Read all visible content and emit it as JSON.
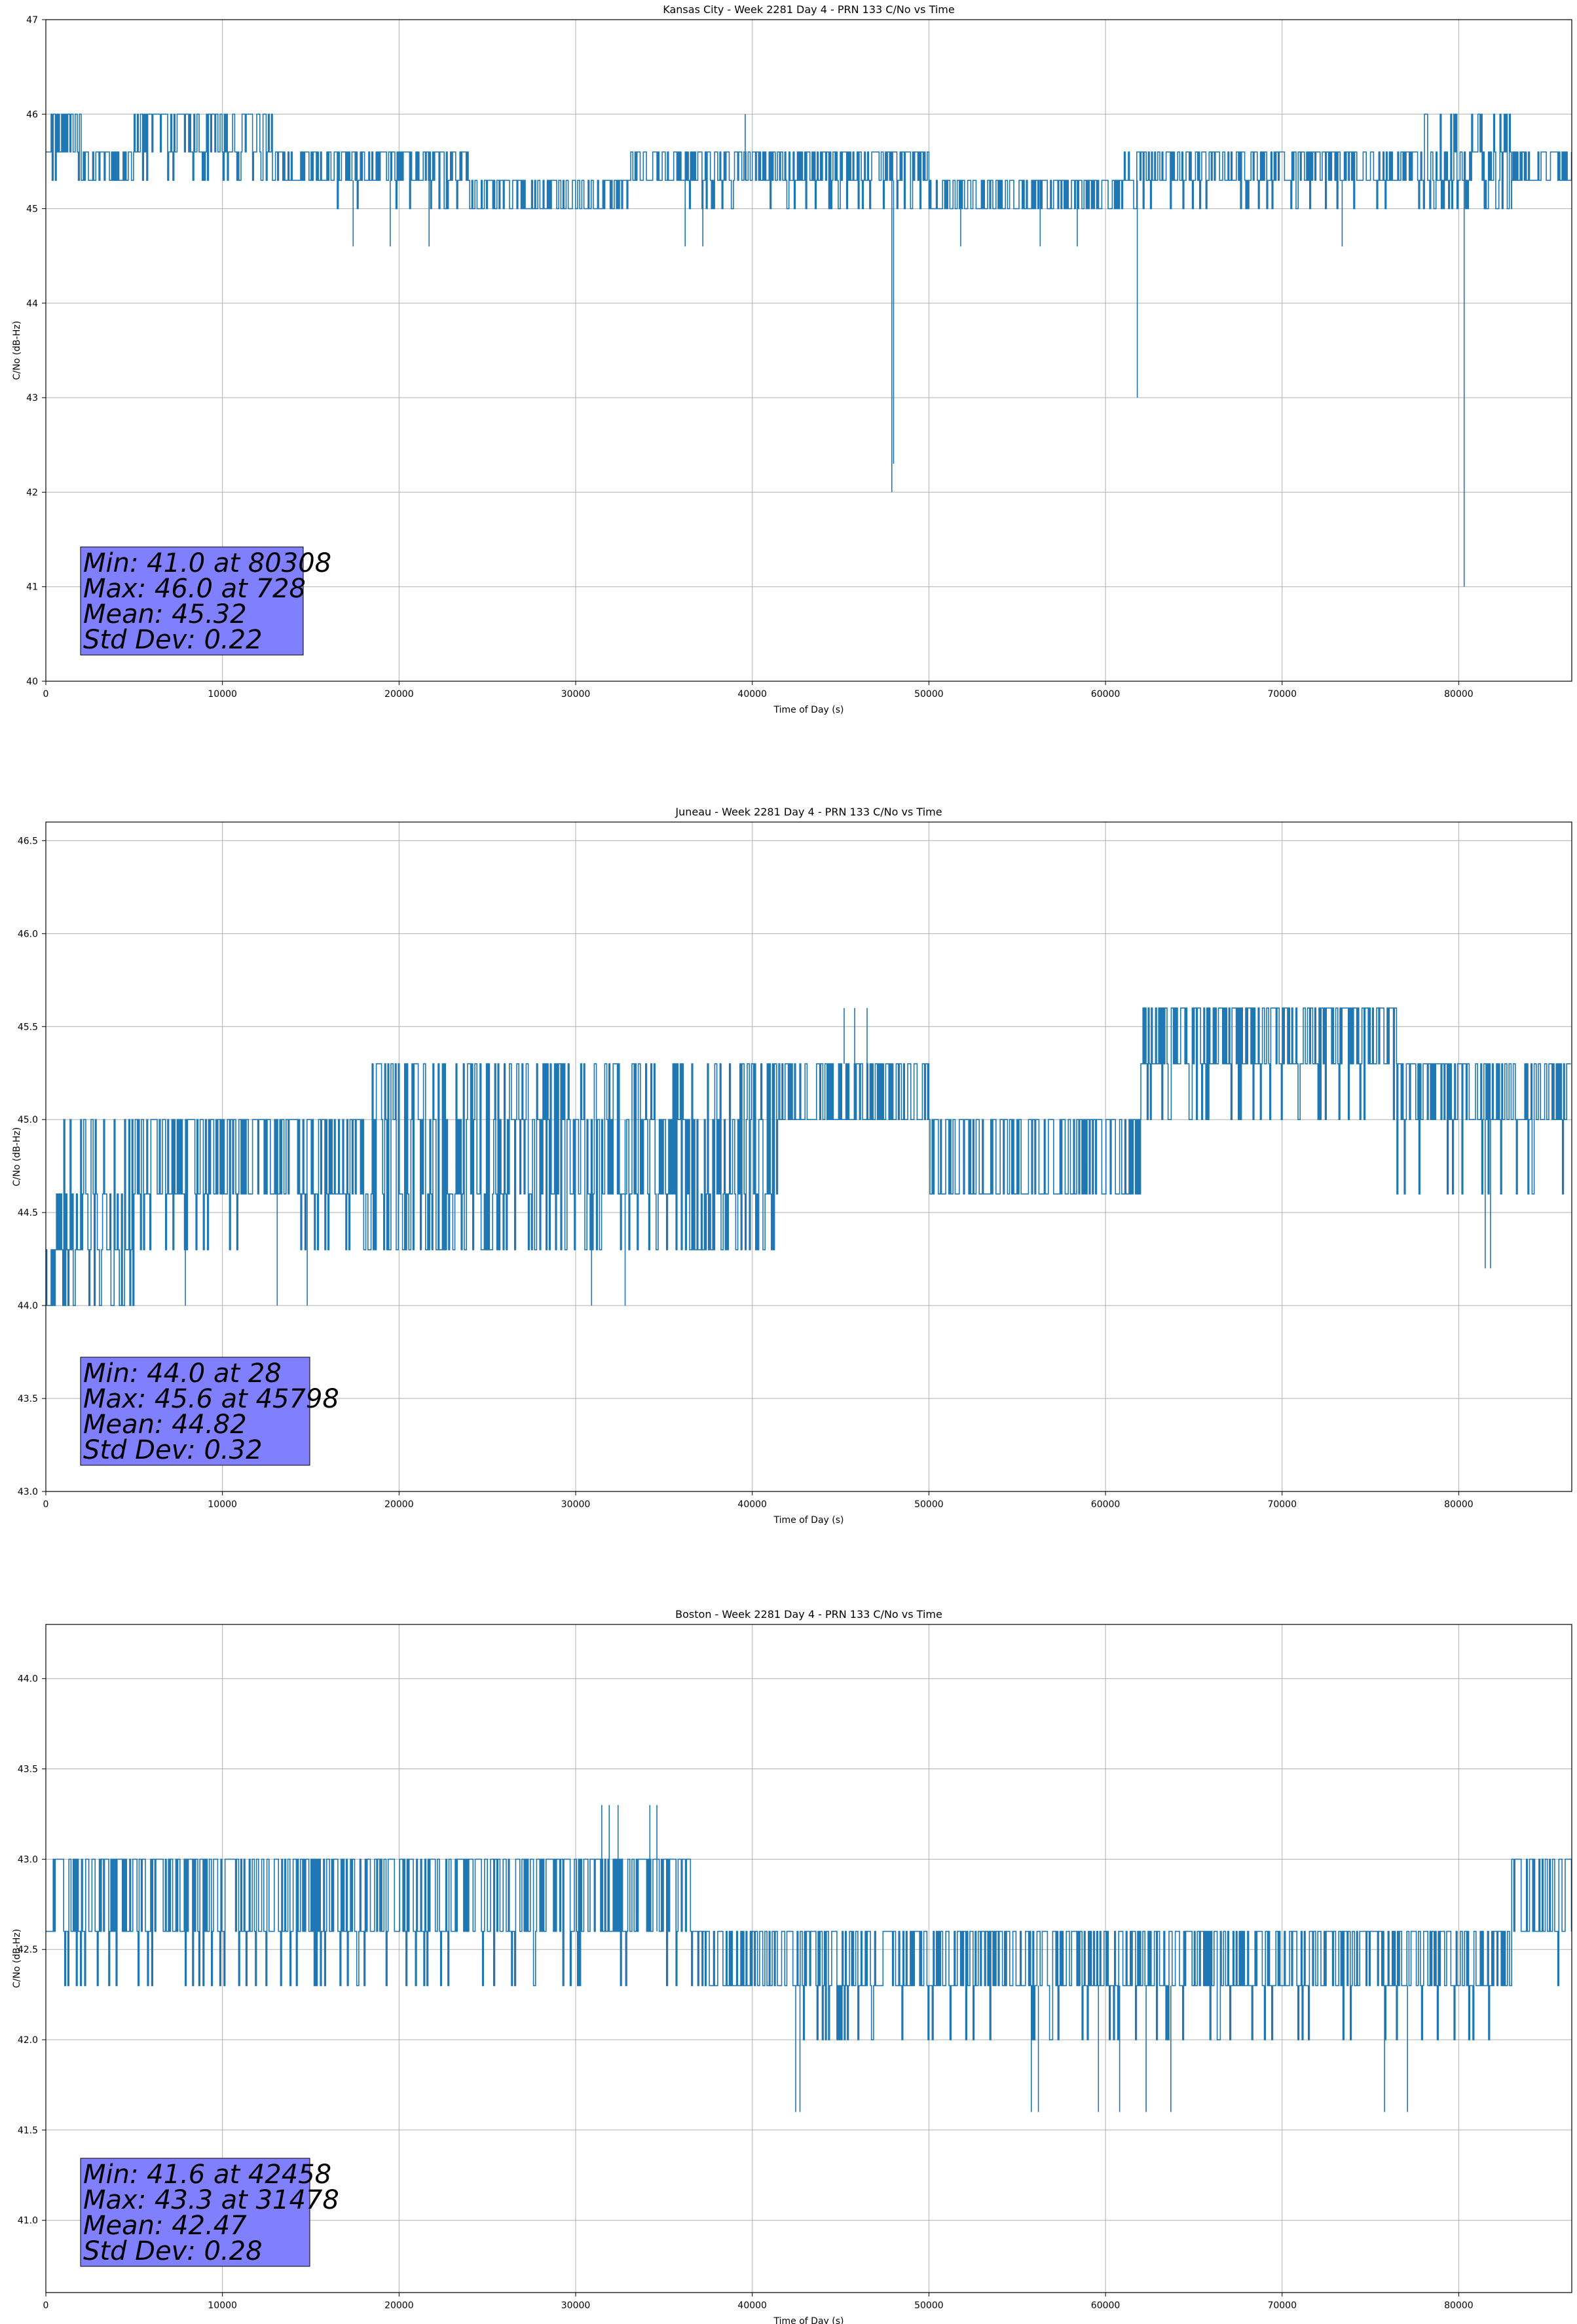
{
  "chart_data": [
    {
      "type": "line",
      "title": "Kansas City - Week 2281 Day 4 - PRN 133 C/No vs Time",
      "xlabel": "Time of Day (s)",
      "ylabel": "C/No (dB-Hz)",
      "xlim": [
        0,
        86400
      ],
      "ylim": [
        40,
        47
      ],
      "xticks": [
        0,
        10000,
        20000,
        30000,
        40000,
        50000,
        60000,
        70000,
        80000
      ],
      "yticks": [
        40,
        41,
        42,
        43,
        44,
        45,
        46,
        47
      ],
      "ytick_labels": [
        "40",
        "41",
        "42",
        "43",
        "44",
        "45",
        "46",
        "47"
      ],
      "grid": true,
      "color": "#1f77b4",
      "stats_box_color": "#8080ff",
      "stats": [
        "Min: 41.0 at 80308",
        "Max: 46.0 at 728",
        "Mean: 45.32",
        "Std Dev: 0.22"
      ],
      "levels": [
        45.0,
        45.3,
        45.6,
        46.0
      ],
      "segments": [
        {
          "x": [
            0,
            2000
          ],
          "levels": [
            45.3,
            45.6,
            46.0
          ]
        },
        {
          "x": [
            2000,
            5000
          ],
          "levels": [
            45.3,
            45.6
          ]
        },
        {
          "x": [
            5000,
            13000
          ],
          "levels": [
            45.3,
            45.6,
            46.0
          ]
        },
        {
          "x": [
            13000,
            16500
          ],
          "levels": [
            45.3,
            45.6
          ]
        },
        {
          "x": [
            16500,
            24000
          ],
          "levels": [
            45.0,
            45.3,
            45.6
          ]
        },
        {
          "x": [
            24000,
            33000
          ],
          "levels": [
            45.0,
            45.3
          ]
        },
        {
          "x": [
            33000,
            50000
          ],
          "levels": [
            45.0,
            45.3,
            45.6
          ]
        },
        {
          "x": [
            50000,
            61000
          ],
          "levels": [
            45.0,
            45.3
          ]
        },
        {
          "x": [
            61000,
            78000
          ],
          "levels": [
            45.0,
            45.3,
            45.6
          ]
        },
        {
          "x": [
            78000,
            83000
          ],
          "levels": [
            45.0,
            45.3,
            45.6,
            46.0
          ]
        },
        {
          "x": [
            83000,
            86400
          ],
          "levels": [
            45.3,
            45.6
          ]
        }
      ],
      "spikes": [
        {
          "x": 728,
          "y": 46.0
        },
        {
          "x": 17400,
          "y": 44.6
        },
        {
          "x": 19500,
          "y": 44.6
        },
        {
          "x": 21700,
          "y": 44.6
        },
        {
          "x": 36200,
          "y": 44.6
        },
        {
          "x": 37200,
          "y": 44.6
        },
        {
          "x": 39600,
          "y": 46.0
        },
        {
          "x": 47900,
          "y": 42.0
        },
        {
          "x": 48000,
          "y": 42.3
        },
        {
          "x": 51800,
          "y": 44.6
        },
        {
          "x": 56300,
          "y": 44.6
        },
        {
          "x": 58400,
          "y": 44.6
        },
        {
          "x": 61800,
          "y": 43.0
        },
        {
          "x": 73400,
          "y": 44.6
        },
        {
          "x": 80308,
          "y": 41.0
        }
      ]
    },
    {
      "type": "line",
      "title": "Juneau - Week 2281 Day 4 - PRN 133 C/No vs Time",
      "xlabel": "Time of Day (s)",
      "ylabel": "C/No (dB-Hz)",
      "xlim": [
        0,
        86400
      ],
      "ylim": [
        43.0,
        46.6
      ],
      "xticks": [
        0,
        10000,
        20000,
        30000,
        40000,
        50000,
        60000,
        70000,
        80000
      ],
      "yticks": [
        43.0,
        43.5,
        44.0,
        44.5,
        45.0,
        45.5,
        46.0,
        46.5
      ],
      "ytick_labels": [
        "43.0",
        "43.5",
        "44.0",
        "44.5",
        "45.0",
        "45.5",
        "46.0",
        "46.5"
      ],
      "grid": true,
      "color": "#1f77b4",
      "stats_box_color": "#8080ff",
      "stats": [
        "Min: 44.0 at 28",
        "Max: 45.6 at 45798",
        "Mean: 44.82",
        "Std Dev: 0.32"
      ],
      "levels": [
        44.0,
        44.3,
        44.6,
        45.0,
        45.3,
        45.6
      ],
      "segments": [
        {
          "x": [
            0,
            600
          ],
          "levels": [
            44.0,
            44.3
          ]
        },
        {
          "x": [
            600,
            5000
          ],
          "levels": [
            44.0,
            44.3,
            44.6,
            45.0
          ]
        },
        {
          "x": [
            5000,
            18000
          ],
          "levels": [
            44.3,
            44.6,
            45.0
          ]
        },
        {
          "x": [
            18000,
            41500
          ],
          "levels": [
            44.3,
            44.6,
            45.0,
            45.3
          ]
        },
        {
          "x": [
            41500,
            50000
          ],
          "levels": [
            45.0,
            45.3
          ]
        },
        {
          "x": [
            50000,
            62000
          ],
          "levels": [
            44.6,
            45.0
          ]
        },
        {
          "x": [
            62000,
            76500
          ],
          "levels": [
            45.0,
            45.3,
            45.6
          ]
        },
        {
          "x": [
            76500,
            86400
          ],
          "levels": [
            44.6,
            45.0,
            45.3
          ]
        }
      ],
      "spikes": [
        {
          "x": 28,
          "y": 44.0
        },
        {
          "x": 7900,
          "y": 44.0
        },
        {
          "x": 13100,
          "y": 44.0
        },
        {
          "x": 14800,
          "y": 44.0
        },
        {
          "x": 30900,
          "y": 44.0
        },
        {
          "x": 32800,
          "y": 44.0
        },
        {
          "x": 45200,
          "y": 45.6
        },
        {
          "x": 45798,
          "y": 45.6
        },
        {
          "x": 46500,
          "y": 45.6
        },
        {
          "x": 81500,
          "y": 44.2
        },
        {
          "x": 81800,
          "y": 44.2
        }
      ]
    },
    {
      "type": "line",
      "title": "Boston - Week 2281 Day 4 - PRN 133 C/No vs Time",
      "xlabel": "Time of Day (s)",
      "ylabel": "C/No (dB-Hz)",
      "xlim": [
        0,
        86400
      ],
      "ylim": [
        40.6,
        44.3
      ],
      "xticks": [
        0,
        10000,
        20000,
        30000,
        40000,
        50000,
        60000,
        70000,
        80000
      ],
      "yticks": [
        41.0,
        41.5,
        42.0,
        42.5,
        43.0,
        43.5,
        44.0
      ],
      "ytick_labels": [
        "41.0",
        "41.5",
        "42.0",
        "42.5",
        "43.0",
        "43.5",
        "44.0"
      ],
      "grid": true,
      "color": "#1f77b4",
      "stats_box_color": "#8080ff",
      "stats": [
        "Min: 41.6 at 42458",
        "Max: 43.3 at 31478",
        "Mean: 42.47",
        "Std Dev: 0.28"
      ],
      "levels": [
        41.6,
        42.0,
        42.3,
        42.6,
        43.0,
        43.3
      ],
      "segments": [
        {
          "x": [
            0,
            16000
          ],
          "levels": [
            42.3,
            42.6,
            43.0
          ]
        },
        {
          "x": [
            16000,
            25000
          ],
          "levels": [
            42.3,
            42.6,
            43.0
          ]
        },
        {
          "x": [
            25000,
            36500
          ],
          "levels": [
            42.3,
            42.6,
            43.0
          ]
        },
        {
          "x": [
            36500,
            42300
          ],
          "levels": [
            42.3,
            42.6
          ]
        },
        {
          "x": [
            42300,
            49000
          ],
          "levels": [
            42.0,
            42.3,
            42.6
          ]
        },
        {
          "x": [
            49000,
            83000
          ],
          "levels": [
            42.0,
            42.3,
            42.6
          ]
        },
        {
          "x": [
            83000,
            86400
          ],
          "levels": [
            42.3,
            42.6,
            43.0
          ]
        }
      ],
      "spikes": [
        {
          "x": 31478,
          "y": 43.3
        },
        {
          "x": 31900,
          "y": 43.3
        },
        {
          "x": 32400,
          "y": 43.3
        },
        {
          "x": 34200,
          "y": 43.3
        },
        {
          "x": 34600,
          "y": 43.3
        },
        {
          "x": 42458,
          "y": 41.6
        },
        {
          "x": 42700,
          "y": 41.6
        },
        {
          "x": 55800,
          "y": 41.6
        },
        {
          "x": 56200,
          "y": 41.6
        },
        {
          "x": 59600,
          "y": 41.6
        },
        {
          "x": 60800,
          "y": 41.6
        },
        {
          "x": 62300,
          "y": 41.6
        },
        {
          "x": 63700,
          "y": 41.6
        },
        {
          "x": 75800,
          "y": 41.6
        },
        {
          "x": 77100,
          "y": 41.6
        }
      ]
    }
  ]
}
